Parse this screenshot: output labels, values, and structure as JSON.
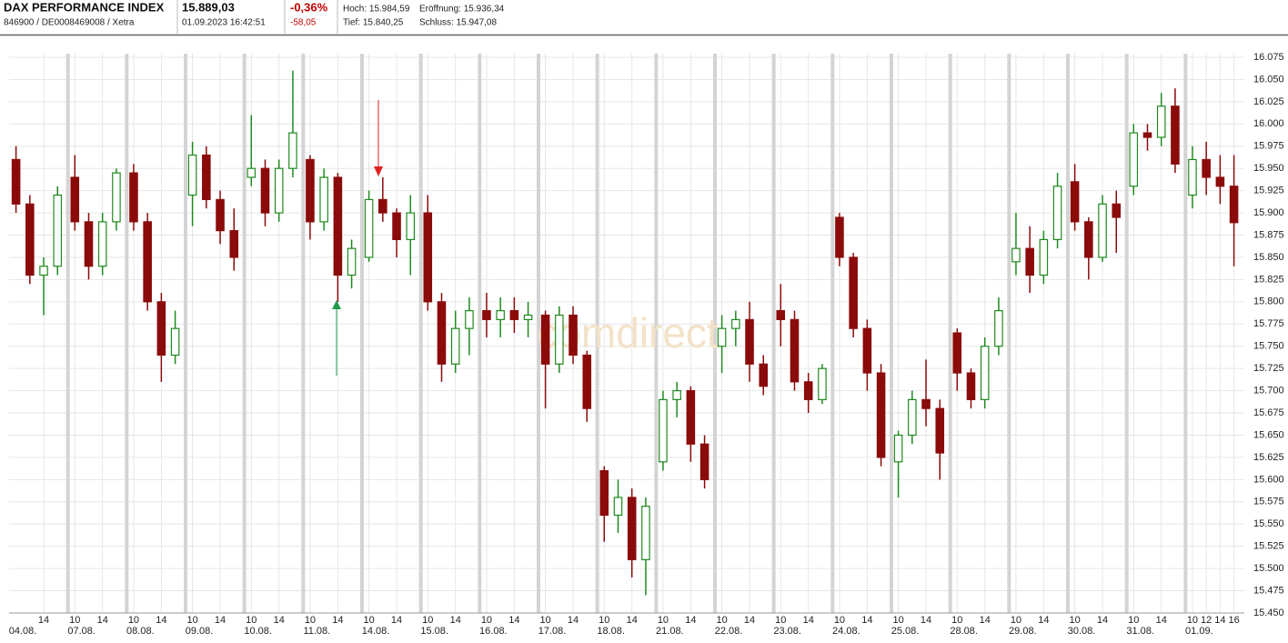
{
  "header": {
    "title": "DAX PERFORMANCE INDEX",
    "identifier": "846900 / DE0008469008 / Xetra",
    "price": "15.889,03",
    "timestamp": "01.09.2023 16:42:51",
    "change_percent": "-0,36%",
    "change": "-58,05",
    "high": "Hoch: 15.984,59",
    "open": "Eröffnung: 15.936,34",
    "low": "Tief: 15.840,25",
    "close": "Schluss: 15.947,08"
  },
  "chart_data": {
    "type": "candlestick",
    "watermark": "comdirect",
    "up_color": "#1f8a1f",
    "down_color": "#8b0a0a",
    "grid": true,
    "xlim": [
      0,
      178.5
    ],
    "ylim": [
      15450,
      16075
    ],
    "yticks": [
      {
        "value": 15450,
        "label": "15.450"
      },
      {
        "value": 15475,
        "label": "15.475"
      },
      {
        "value": 15500,
        "label": "15.500"
      },
      {
        "value": 15525,
        "label": "15.525"
      },
      {
        "value": 15550,
        "label": "15.550"
      },
      {
        "value": 15575,
        "label": "15.575"
      },
      {
        "value": 15600,
        "label": "15.600"
      },
      {
        "value": 15625,
        "label": "15.625"
      },
      {
        "value": 15650,
        "label": "15.650"
      },
      {
        "value": 15675,
        "label": "15.675"
      },
      {
        "value": 15700,
        "label": "15.700"
      },
      {
        "value": 15725,
        "label": "15.725"
      },
      {
        "value": 15750,
        "label": "15.750"
      },
      {
        "value": 15775,
        "label": "15.775"
      },
      {
        "value": 15800,
        "label": "15.800"
      },
      {
        "value": 15825,
        "label": "15.825"
      },
      {
        "value": 15850,
        "label": "15.850"
      },
      {
        "value": 15875,
        "label": "15.875"
      },
      {
        "value": 15900,
        "label": "15.900"
      },
      {
        "value": 15925,
        "label": "15.925"
      },
      {
        "value": 15950,
        "label": "15.950"
      },
      {
        "value": 15975,
        "label": "15.975"
      },
      {
        "value": 16000,
        "label": "16.000"
      },
      {
        "value": 16025,
        "label": "16.025"
      },
      {
        "value": 16050,
        "label": "16.050"
      },
      {
        "value": 16075,
        "label": "16.075"
      }
    ],
    "xticks": [
      {
        "value": 5,
        "label": "14"
      },
      {
        "value": 9.5,
        "label": "10"
      },
      {
        "value": 13.5,
        "label": "14"
      },
      {
        "value": 18,
        "label": "10"
      },
      {
        "value": 22,
        "label": "14"
      },
      {
        "value": 26.5,
        "label": "10"
      },
      {
        "value": 30.5,
        "label": "14"
      },
      {
        "value": 35,
        "label": "10"
      },
      {
        "value": 39,
        "label": "14"
      },
      {
        "value": 43.5,
        "label": "10"
      },
      {
        "value": 47.5,
        "label": "14"
      },
      {
        "value": 52,
        "label": "10"
      },
      {
        "value": 56,
        "label": "14"
      },
      {
        "value": 60.5,
        "label": "10"
      },
      {
        "value": 64.5,
        "label": "14"
      },
      {
        "value": 69,
        "label": "10"
      },
      {
        "value": 73,
        "label": "14"
      },
      {
        "value": 77.5,
        "label": "10"
      },
      {
        "value": 81.5,
        "label": "14"
      },
      {
        "value": 86,
        "label": "10"
      },
      {
        "value": 90,
        "label": "14"
      },
      {
        "value": 94.5,
        "label": "10"
      },
      {
        "value": 98.5,
        "label": "14"
      },
      {
        "value": 103,
        "label": "10"
      },
      {
        "value": 107,
        "label": "14"
      },
      {
        "value": 111.5,
        "label": "10"
      },
      {
        "value": 115.5,
        "label": "14"
      },
      {
        "value": 120,
        "label": "10"
      },
      {
        "value": 124,
        "label": "14"
      },
      {
        "value": 128.5,
        "label": "10"
      },
      {
        "value": 132.5,
        "label": "14"
      },
      {
        "value": 137,
        "label": "10"
      },
      {
        "value": 141,
        "label": "14"
      },
      {
        "value": 145.5,
        "label": "10"
      },
      {
        "value": 149.5,
        "label": "14"
      },
      {
        "value": 154,
        "label": "10"
      },
      {
        "value": 158,
        "label": "14"
      },
      {
        "value": 162.5,
        "label": "10"
      },
      {
        "value": 166.5,
        "label": "14"
      },
      {
        "value": 171,
        "label": "10"
      },
      {
        "value": 173,
        "label": "12"
      },
      {
        "value": 175,
        "label": "14"
      },
      {
        "value": 177,
        "label": "16"
      }
    ],
    "day_ticks": [
      {
        "value": 0,
        "label": "04.08."
      },
      {
        "value": 8.5,
        "label": "07.08."
      },
      {
        "value": 17,
        "label": "08.08."
      },
      {
        "value": 25.5,
        "label": "09.08."
      },
      {
        "value": 34,
        "label": "10.08."
      },
      {
        "value": 42.5,
        "label": "11.08."
      },
      {
        "value": 51,
        "label": "14.08."
      },
      {
        "value": 59.5,
        "label": "15.08."
      },
      {
        "value": 68,
        "label": "16.08."
      },
      {
        "value": 76.5,
        "label": "17.08."
      },
      {
        "value": 85,
        "label": "18.08."
      },
      {
        "value": 93.5,
        "label": "21.08."
      },
      {
        "value": 102,
        "label": "22.08."
      },
      {
        "value": 110.5,
        "label": "23.08."
      },
      {
        "value": 119,
        "label": "24.08."
      },
      {
        "value": 127.5,
        "label": "25.08."
      },
      {
        "value": 136,
        "label": "28.08."
      },
      {
        "value": 144.5,
        "label": "29.08."
      },
      {
        "value": 153,
        "label": "30.08."
      },
      {
        "value": 161.5,
        "label": "31.08."
      },
      {
        "value": 170,
        "label": "01.09."
      }
    ],
    "x": [
      1,
      3,
      5,
      7,
      9.5,
      11.5,
      13.5,
      15.5,
      18,
      20,
      22,
      24,
      26.5,
      28.5,
      30.5,
      32.5,
      35,
      37,
      39,
      41,
      43.5,
      45.5,
      47.5,
      49.5,
      52,
      54,
      56,
      58,
      60.5,
      62.5,
      64.5,
      66.5,
      69,
      71,
      73,
      75,
      77.5,
      79.5,
      81.5,
      83.5,
      86,
      88,
      90,
      92,
      94.5,
      96.5,
      98.5,
      100.5,
      103,
      105,
      107,
      109,
      111.5,
      113.5,
      115.5,
      117.5,
      120,
      122,
      124,
      126,
      128.5,
      130.5,
      132.5,
      134.5,
      137,
      139,
      141,
      143,
      145.5,
      147.5,
      149.5,
      151.5,
      154,
      156,
      158,
      160,
      162.5,
      164.5,
      166.5,
      168.5,
      171,
      173,
      175,
      177
    ],
    "open": [
      15960,
      15910,
      15830,
      15840,
      15940,
      15890,
      15840,
      15890,
      15945,
      15890,
      15800,
      15740,
      15920,
      15965,
      15915,
      15880,
      15940,
      15950,
      15900,
      15950,
      15960,
      15890,
      15940,
      15830,
      15850,
      15915,
      15900,
      15870,
      15900,
      15800,
      15730,
      15770,
      15790,
      15780,
      15790,
      15780,
      15785,
      15730,
      15785,
      15740,
      15610,
      15560,
      15580,
      15510,
      15620,
      15690,
      15700,
      15640,
      15750,
      15770,
      15780,
      15730,
      15790,
      15780,
      15710,
      15690,
      15895,
      15850,
      15770,
      15720,
      15620,
      15650,
      15690,
      15680,
      15765,
      15720,
      15690,
      15750,
      15845,
      15860,
      15830,
      15870,
      15935,
      15890,
      15850,
      15910,
      15930,
      15990,
      15985,
      16020,
      15920,
      15960,
      15940,
      15930
    ],
    "high": [
      15975,
      15920,
      15850,
      15930,
      15965,
      15900,
      15900,
      15950,
      15955,
      15900,
      15810,
      15790,
      15980,
      15975,
      15925,
      15905,
      16010,
      15960,
      15960,
      16060,
      15965,
      15950,
      15945,
      15870,
      15925,
      15940,
      15905,
      15920,
      15920,
      15810,
      15790,
      15805,
      15810,
      15805,
      15805,
      15800,
      15790,
      15795,
      15795,
      15745,
      15615,
      15600,
      15590,
      15580,
      15700,
      15710,
      15705,
      15650,
      15785,
      15790,
      15800,
      15740,
      15820,
      15790,
      15720,
      15730,
      15900,
      15855,
      15780,
      15730,
      15655,
      15700,
      15735,
      15690,
      15770,
      15725,
      15760,
      15805,
      15900,
      15885,
      15880,
      15945,
      15955,
      15895,
      15920,
      15925,
      16000,
      16000,
      16035,
      16040,
      15975,
      15980,
      15965,
      15965
    ],
    "low": [
      15900,
      15820,
      15785,
      15830,
      15880,
      15825,
      15830,
      15880,
      15880,
      15790,
      15710,
      15730,
      15885,
      15905,
      15865,
      15835,
      15930,
      15885,
      15890,
      15940,
      15870,
      15880,
      15800,
      15815,
      15845,
      15890,
      15850,
      15830,
      15790,
      15710,
      15720,
      15740,
      15760,
      15760,
      15765,
      15760,
      15680,
      15720,
      15730,
      15665,
      15530,
      15540,
      15490,
      15470,
      15610,
      15670,
      15620,
      15590,
      15720,
      15750,
      15710,
      15695,
      15750,
      15700,
      15675,
      15685,
      15840,
      15760,
      15700,
      15615,
      15580,
      15640,
      15660,
      15600,
      15700,
      15680,
      15680,
      15740,
      15830,
      15810,
      15820,
      15860,
      15880,
      15825,
      15845,
      15855,
      15920,
      15970,
      15975,
      15945,
      15905,
      15920,
      15910,
      15840
    ],
    "close": [
      15910,
      15830,
      15840,
      15920,
      15890,
      15840,
      15890,
      15945,
      15890,
      15800,
      15740,
      15770,
      15965,
      15915,
      15880,
      15850,
      15950,
      15900,
      15950,
      15990,
      15890,
      15940,
      15830,
      15860,
      15915,
      15900,
      15870,
      15900,
      15800,
      15730,
      15770,
      15790,
      15780,
      15790,
      15780,
      15785,
      15730,
      15785,
      15740,
      15680,
      15560,
      15580,
      15510,
      15570,
      15690,
      15700,
      15640,
      15600,
      15770,
      15780,
      15730,
      15705,
      15780,
      15710,
      15690,
      15725,
      15850,
      15770,
      15720,
      15625,
      15650,
      15690,
      15680,
      15630,
      15720,
      15690,
      15750,
      15790,
      15860,
      15830,
      15870,
      15930,
      15890,
      15850,
      15910,
      15895,
      15990,
      15985,
      16020,
      15955,
      15960,
      15940,
      15930,
      15889.03
    ]
  }
}
